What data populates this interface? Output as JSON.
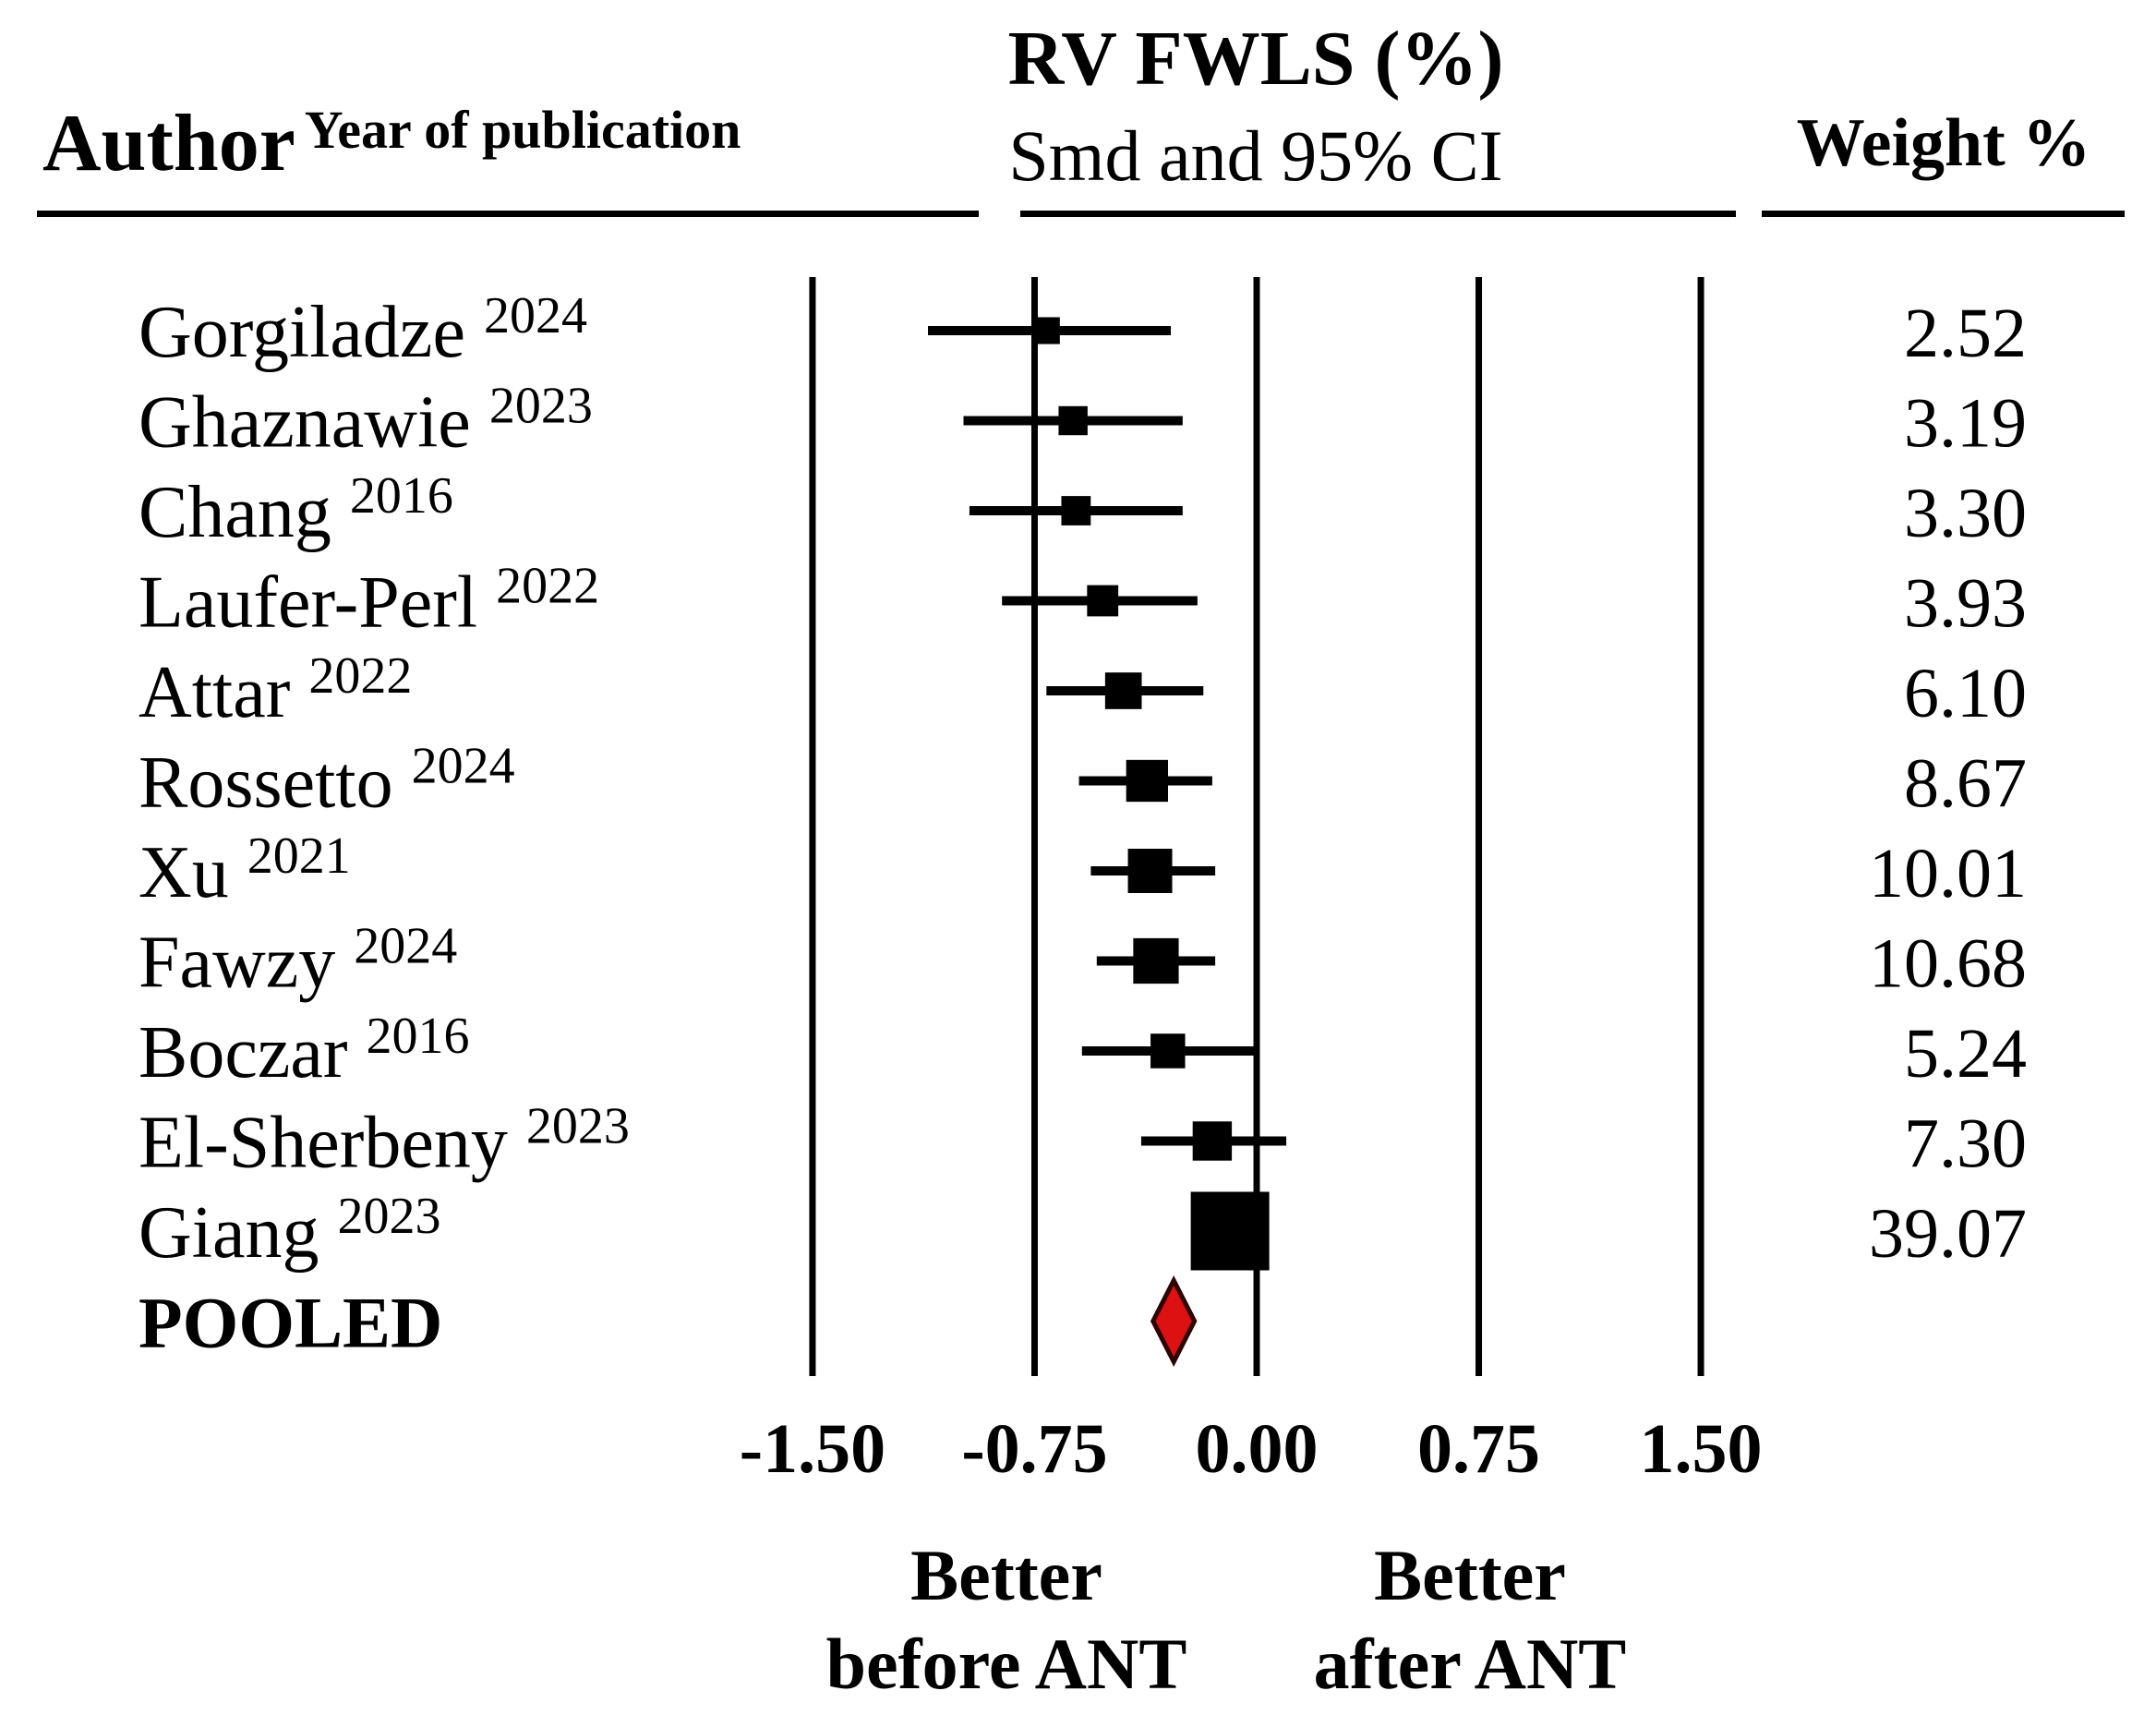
{
  "figure": {
    "author_header": "Author",
    "year_header": "Year of publication",
    "title": "RV FWLS (%)",
    "subtitle": "Smd and 95% CI",
    "weight_header": "Weight %"
  },
  "chart_data": {
    "type": "forest",
    "title": "RV FWLS (%)",
    "subtitle": "Smd and 95% CI",
    "effect_measure": "Smd",
    "xlim": [
      -1.5,
      1.5
    ],
    "x_tick_labels": [
      "-1.50",
      "-0.75",
      "0.00",
      "0.75",
      "1.50"
    ],
    "x_tick_values": [
      -1.5,
      -0.75,
      0,
      0.75,
      1.5
    ],
    "grid": "vertical-reference-lines",
    "direction_left": [
      "Better",
      "before ANT"
    ],
    "direction_right": [
      "Better",
      "after ANT"
    ],
    "weight_column_header": "Weight %",
    "studies": [
      {
        "author": "Gorgiladze",
        "year": "2024",
        "smd": -0.71,
        "ci_low": -1.11,
        "ci_high": -0.29,
        "weight": "2.52"
      },
      {
        "author": "Ghaznawie",
        "year": "2023",
        "smd": -0.62,
        "ci_low": -0.99,
        "ci_high": -0.25,
        "weight": "3.19"
      },
      {
        "author": "Chang",
        "year": "2016",
        "smd": -0.61,
        "ci_low": -0.97,
        "ci_high": -0.25,
        "weight": "3.30"
      },
      {
        "author": "Laufer-Perl",
        "year": "2022",
        "smd": -0.52,
        "ci_low": -0.86,
        "ci_high": -0.2,
        "weight": "3.93"
      },
      {
        "author": "Attar",
        "year": "2022",
        "smd": -0.45,
        "ci_low": -0.71,
        "ci_high": -0.18,
        "weight": "6.10"
      },
      {
        "author": "Rossetto",
        "year": "2024",
        "smd": -0.37,
        "ci_low": -0.6,
        "ci_high": -0.15,
        "weight": "8.67"
      },
      {
        "author": "Xu",
        "year": "2021",
        "smd": -0.36,
        "ci_low": -0.56,
        "ci_high": -0.14,
        "weight": "10.01"
      },
      {
        "author": "Fawzy",
        "year": "2024",
        "smd": -0.34,
        "ci_low": -0.54,
        "ci_high": -0.14,
        "weight": "10.68"
      },
      {
        "author": "Boczar",
        "year": "2016",
        "smd": -0.3,
        "ci_low": -0.59,
        "ci_high": -0.01,
        "weight": "5.24"
      },
      {
        "author": "El-Sherbeny",
        "year": "2023",
        "smd": -0.15,
        "ci_low": -0.39,
        "ci_high": 0.1,
        "weight": "7.30"
      },
      {
        "author": "Giang",
        "year": "2023",
        "smd": -0.09,
        "ci_low": -0.21,
        "ci_high": 0.03,
        "weight": "39.07"
      }
    ],
    "pooled": {
      "label": "POOLED",
      "smd": -0.28,
      "ci_low": -0.35,
      "ci_high": -0.21
    },
    "colors": {
      "marker": "#000000",
      "ci_line": "#000000",
      "gridline": "#000000",
      "diamond_fill": "#dd1111",
      "diamond_stroke": "#2f0202",
      "text": "#000000",
      "background": "#ffffff"
    }
  }
}
